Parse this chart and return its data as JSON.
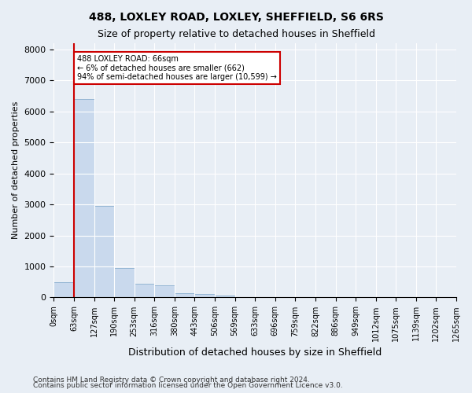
{
  "title1": "488, LOXLEY ROAD, LOXLEY, SHEFFIELD, S6 6RS",
  "title2": "Size of property relative to detached houses in Sheffield",
  "xlabel": "Distribution of detached houses by size in Sheffield",
  "ylabel": "Number of detached properties",
  "footer1": "Contains HM Land Registry data © Crown copyright and database right 2024.",
  "footer2": "Contains public sector information licensed under the Open Government Licence v3.0.",
  "bin_labels": [
    "0sqm",
    "63sqm",
    "127sqm",
    "190sqm",
    "253sqm",
    "316sqm",
    "380sqm",
    "443sqm",
    "506sqm",
    "569sqm",
    "633sqm",
    "696sqm",
    "759sqm",
    "822sqm",
    "886sqm",
    "949sqm",
    "1012sqm",
    "1075sqm",
    "1139sqm",
    "1202sqm",
    "1265sqm"
  ],
  "bar_values": [
    500,
    6400,
    2950,
    950,
    430,
    390,
    130,
    110,
    60,
    0,
    0,
    0,
    0,
    0,
    0,
    0,
    0,
    0,
    0,
    0
  ],
  "bar_color": "#c9d9ed",
  "bar_edge_color": "#7ba4c9",
  "property_size": 66,
  "property_bin_index": 1,
  "annotation_title": "488 LOXLEY ROAD: 66sqm",
  "annotation_line1": "← 6% of detached houses are smaller (662)",
  "annotation_line2": "94% of semi-detached houses are larger (10,599) →",
  "annotation_box_color": "#ffffff",
  "annotation_box_edge_color": "#cc0000",
  "redline_color": "#cc0000",
  "ylim": [
    0,
    8200
  ],
  "yticks": [
    0,
    1000,
    2000,
    3000,
    4000,
    5000,
    6000,
    7000,
    8000
  ],
  "background_color": "#e8eef5",
  "plot_bg_color": "#e8eef5",
  "grid_color": "#ffffff"
}
